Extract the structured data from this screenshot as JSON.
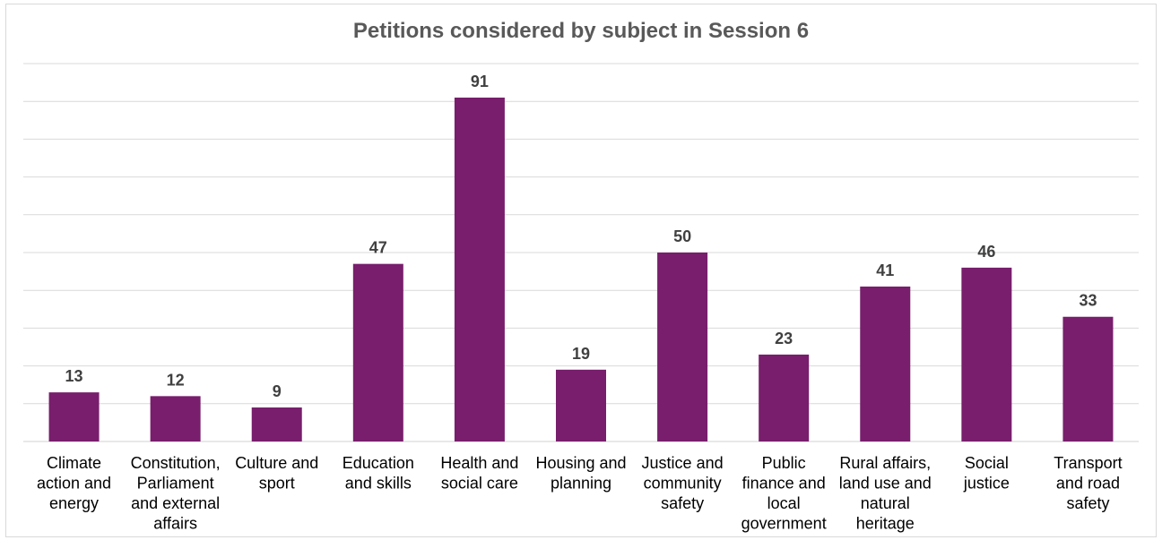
{
  "chart_data": {
    "type": "bar",
    "title": "Petitions considered by subject in Session 6",
    "categories": [
      [
        "Climate",
        "action and",
        "energy"
      ],
      [
        "Constitution,",
        "Parliament",
        "and external",
        "affairs"
      ],
      [
        "Culture and",
        "sport"
      ],
      [
        "Education",
        "and skills"
      ],
      [
        "Health and",
        "social care"
      ],
      [
        "Housing and",
        "planning"
      ],
      [
        "Justice and",
        "community",
        "safety"
      ],
      [
        "Public",
        "finance and",
        "local",
        "government"
      ],
      [
        "Rural affairs,",
        "land use and",
        "natural",
        "heritage"
      ],
      [
        "Social",
        "justice"
      ],
      [
        "Transport",
        "and road",
        "safety"
      ]
    ],
    "values": [
      13,
      12,
      9,
      47,
      91,
      19,
      50,
      23,
      41,
      46,
      33
    ],
    "ylim": [
      0,
      100
    ],
    "grid": true,
    "data_labels": true,
    "legend": "none",
    "xlabel": "",
    "ylabel": "",
    "bar_color": "#781e6c"
  }
}
